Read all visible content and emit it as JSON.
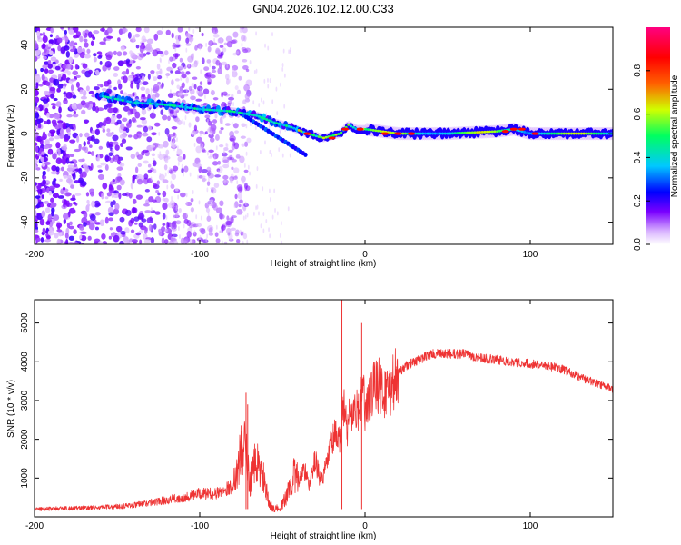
{
  "figure_title": "GN04.2026.102.12.00.C33",
  "chart_data": [
    {
      "type": "heatmap",
      "title": "",
      "xlabel": "Height of straight line (km)",
      "ylabel": "Frequency (Hz)",
      "xlim": [
        -200,
        150
      ],
      "ylim": [
        -50,
        48
      ],
      "xticks": [
        -200,
        -100,
        0,
        100
      ],
      "yticks": [
        -40,
        -20,
        0,
        20,
        40
      ],
      "grid": false,
      "colorbar": {
        "label": "Normalized spectral amplitude",
        "range": [
          0,
          1
        ],
        "ticks": [
          0.0,
          0.2,
          0.4,
          0.6,
          0.8
        ],
        "colormap": [
          "#ffffff",
          "#d9b3ff",
          "#7a00ff",
          "#0000ff",
          "#00c8ff",
          "#00ff60",
          "#d0ff00",
          "#ff6000",
          "#ff0000",
          "#ff0080"
        ]
      },
      "ridge": {
        "description_points_x": [
          -160,
          -140,
          -120,
          -100,
          -80,
          -65,
          -55,
          -45,
          -35,
          -25,
          -15,
          -10,
          -5,
          0,
          20,
          50,
          80,
          90,
          100,
          120,
          150
        ],
        "description_points_y": [
          17,
          14,
          13,
          11,
          10,
          8,
          5,
          3,
          0,
          -2,
          0,
          4,
          2,
          2,
          0,
          0,
          1,
          2,
          0,
          0,
          0
        ]
      }
    },
    {
      "type": "line",
      "title": "",
      "xlabel": "Height of straight line (km)",
      "ylabel": "SNR (10 * v/v)",
      "xlim": [
        -200,
        150
      ],
      "ylim": [
        0,
        5600
      ],
      "xticks": [
        -200,
        -100,
        0,
        100
      ],
      "yticks": [
        1000,
        2000,
        3000,
        4000,
        5000
      ],
      "grid": false,
      "color": "#ee3333",
      "series": [
        {
          "x": [
            -200,
            -180,
            -160,
            -140,
            -125,
            -110,
            -100,
            -90,
            -80,
            -76,
            -73,
            -70,
            -66,
            -62,
            -58,
            -54,
            -50,
            -46,
            -43,
            -40,
            -37,
            -34,
            -30,
            -27,
            -24,
            -21,
            -18,
            -15,
            -13,
            -11,
            -9,
            -6,
            -3,
            -1,
            0,
            3,
            6,
            10,
            15,
            20,
            25,
            30,
            40,
            50,
            60,
            70,
            80,
            90,
            100,
            110,
            120,
            130,
            140,
            150
          ],
          "y": [
            200,
            220,
            240,
            300,
            400,
            500,
            600,
            600,
            800,
            1500,
            2000,
            900,
            1400,
            1100,
            300,
            200,
            300,
            700,
            1100,
            900,
            1300,
            800,
            1500,
            900,
            1200,
            1800,
            2100,
            1900,
            3000,
            2200,
            2800,
            2600,
            2900,
            3400,
            2600,
            3000,
            3600,
            3200,
            3300,
            3700,
            3900,
            4000,
            4200,
            4200,
            4200,
            4100,
            4050,
            4000,
            3950,
            3900,
            3800,
            3600,
            3450,
            3300
          ]
        }
      ],
      "spikes": [
        {
          "x": -72,
          "y": 3200
        },
        {
          "x": -71,
          "y": 2900
        },
        {
          "x": -14,
          "y": 5600
        },
        {
          "x": -2,
          "y": 5000
        }
      ]
    }
  ]
}
